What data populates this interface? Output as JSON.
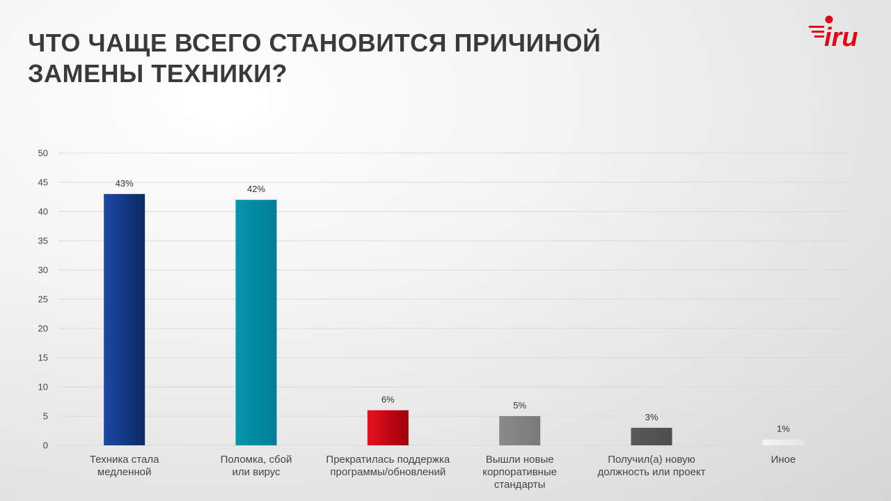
{
  "title_lines": [
    "ЧТО ЧАЩЕ ВСЕГО СТАНОВИТСЯ ПРИЧИНОЙ",
    "ЗАМЕНЫ ТЕХНИКИ?"
  ],
  "logo_text": "iru",
  "colors": {
    "brand": "#e30613",
    "title": "#3a3a3a",
    "grid": "#d9d9d9"
  },
  "chart_data": {
    "type": "bar",
    "categories": [
      [
        "Техника  стала",
        "медленной"
      ],
      [
        "Поломка,  сбой",
        "или  вирус"
      ],
      [
        "Прекратилась поддержка",
        "программы/обновлений"
      ],
      [
        "Вышли  новые",
        "корпоративные",
        "стандарты"
      ],
      [
        "Получил(а)  новую",
        "должность  или проект"
      ],
      [
        "Иное"
      ]
    ],
    "values": [
      43,
      42,
      6,
      5,
      3,
      1
    ],
    "data_labels": [
      "43%",
      "42%",
      "6%",
      "5%",
      "3%",
      "1%"
    ],
    "bar_colors": [
      [
        "#1a49a5",
        "#0d2a63"
      ],
      [
        "#0396ad",
        "#027d96"
      ],
      [
        "#e8101e",
        "#9b000a"
      ],
      [
        "#8a8a8a",
        "#7a7a7a"
      ],
      [
        "#5a5a5a",
        "#4c4c4c"
      ],
      [
        "#f4f4f4",
        "#e6e6e6"
      ]
    ],
    "ylim": [
      0,
      50
    ],
    "yticks": [
      0,
      5,
      10,
      15,
      20,
      25,
      30,
      35,
      40,
      45,
      50
    ],
    "grid": true,
    "legend": "none",
    "xlabel": "",
    "ylabel": ""
  }
}
